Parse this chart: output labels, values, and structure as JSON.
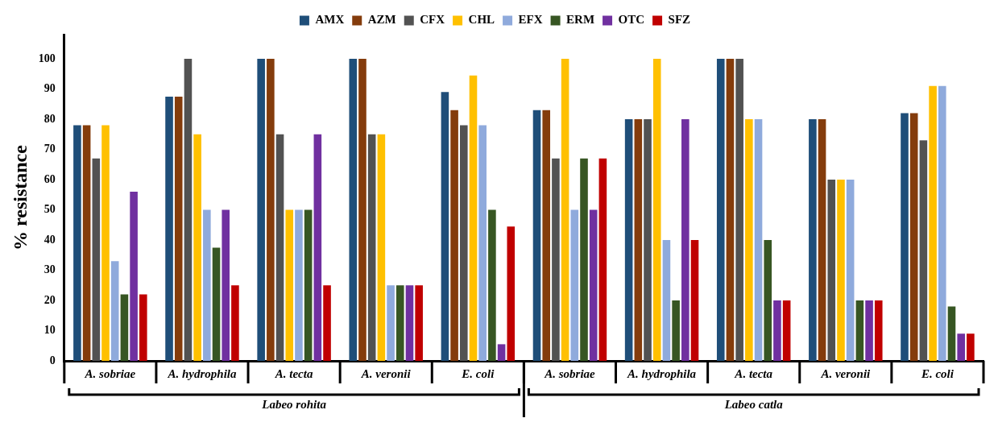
{
  "chart_data": {
    "type": "bar",
    "ylabel": "% resistance",
    "categories": [
      "A. sobriae",
      "A. hydrophila",
      "A. tecta",
      "A. veronii",
      "E. coli",
      "A. sobriae",
      "A. hydrophila",
      "A. tecta",
      "A. veronii",
      "E. coli"
    ],
    "series": [
      {
        "name": "AMX",
        "color": "#1f4e79",
        "values": [
          78,
          87.5,
          100,
          100,
          89,
          83,
          80,
          100,
          80,
          82
        ]
      },
      {
        "name": "AZM",
        "color": "#843c0c",
        "values": [
          78,
          87.5,
          100,
          100,
          83,
          83,
          80,
          100,
          80,
          82
        ]
      },
      {
        "name": "CFX",
        "color": "#525252",
        "values": [
          67,
          100,
          75,
          75,
          78,
          67,
          80,
          100,
          60,
          73
        ]
      },
      {
        "name": "CHL",
        "color": "#ffc000",
        "values": [
          78,
          75,
          50,
          75,
          94.5,
          100,
          100,
          80,
          60,
          91
        ]
      },
      {
        "name": "EFX",
        "color": "#8faadc",
        "values": [
          33,
          50,
          50,
          25,
          78,
          50,
          40,
          80,
          60,
          91
        ]
      },
      {
        "name": "ERM",
        "color": "#375623",
        "values": [
          22,
          37.5,
          50,
          25,
          50,
          67,
          20,
          40,
          20,
          18
        ]
      },
      {
        "name": "OTC",
        "color": "#7030a0",
        "values": [
          56,
          50,
          75,
          25,
          5.5,
          50,
          80,
          20,
          20,
          9
        ]
      },
      {
        "name": "SFZ",
        "color": "#c00000",
        "values": [
          22,
          25,
          25,
          25,
          44.5,
          67,
          40,
          20,
          20,
          9
        ]
      }
    ],
    "ylim": [
      0,
      108
    ],
    "yticks": [
      0,
      10,
      20,
      30,
      40,
      50,
      60,
      70,
      80,
      90,
      100
    ],
    "grid": false,
    "legend": "top",
    "annotations": [
      "Labeo rohita",
      "Labeo catla"
    ]
  }
}
